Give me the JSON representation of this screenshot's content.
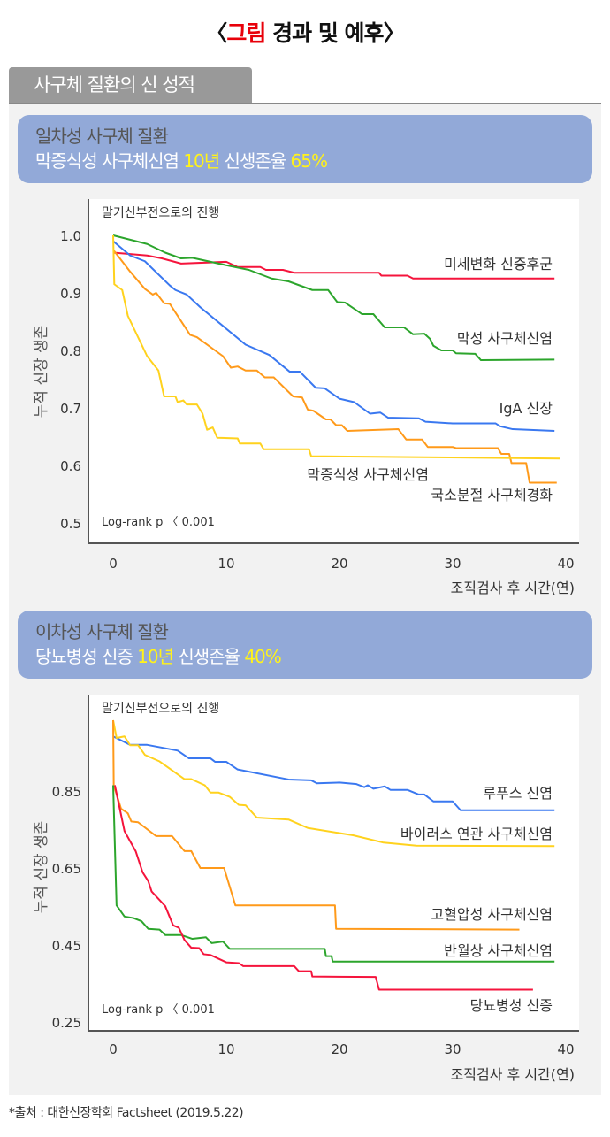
{
  "title": {
    "open": "〈",
    "highlight": "그림",
    "rest": " 경과 및 예후",
    "close": "〉"
  },
  "tab_label": "사구체 질환의 신 성적",
  "box1": {
    "line1": "일차성 사구체 질환",
    "line2_a": "막증식성 사구체신염 ",
    "line2_b": "10년",
    "line2_c": " 신생존율 ",
    "line2_d": "65%"
  },
  "box2": {
    "line1": "이차성 사구체 질환",
    "line2_a": "당뇨병성 신증 ",
    "line2_b": "10년",
    "line2_c": " 신생존율 ",
    "line2_d": "40%"
  },
  "source": "*출처 : 대한신장학회 Factsheet (2019.5.22)",
  "chart_data": [
    {
      "type": "line",
      "title": "말기신부전으로의 진행",
      "xlabel": "조직검사 후 시간(연)",
      "ylabel": "누적 신장 생존",
      "annotation": "Log-rank p 〈 0.001",
      "xlim": [
        0,
        40
      ],
      "ylim": [
        0.5,
        1.0
      ],
      "xticks": [
        "0",
        "10",
        "20",
        "30",
        "40"
      ],
      "yticks": [
        {
          "v": 1.0,
          "label": "1.0"
        },
        {
          "v": 0.9,
          "label": "0.9"
        },
        {
          "v": 0.8,
          "label": "0.8"
        },
        {
          "v": 0.7,
          "label": "0.7"
        },
        {
          "v": 0.6,
          "label": "0.6"
        },
        {
          "v": 0.5,
          "label": "0.5"
        }
      ],
      "series": [
        {
          "name": "미세변화 신증후군",
          "color": "#f5143c",
          "points": [
            [
              0,
              0.97
            ],
            [
              3,
              0.965
            ],
            [
              4.3,
              0.96
            ],
            [
              6,
              0.951
            ],
            [
              10,
              0.954
            ],
            [
              11,
              0.945
            ],
            [
              13,
              0.945
            ],
            [
              13.5,
              0.94
            ],
            [
              15,
              0.94
            ],
            [
              16,
              0.935
            ],
            [
              23.5,
              0.935
            ],
            [
              23.7,
              0.93
            ],
            [
              26,
              0.93
            ],
            [
              26.5,
              0.925
            ],
            [
              39,
              0.925
            ]
          ]
        },
        {
          "name": "막성 사구체신염",
          "color": "#2ca52c",
          "points": [
            [
              0,
              1.0
            ],
            [
              3,
              0.985
            ],
            [
              4.6,
              0.97
            ],
            [
              6,
              0.96
            ],
            [
              7,
              0.961
            ],
            [
              10,
              0.948
            ],
            [
              12,
              0.94
            ],
            [
              14,
              0.925
            ],
            [
              15.5,
              0.92
            ],
            [
              17.6,
              0.905
            ],
            [
              19,
              0.905
            ],
            [
              19.8,
              0.884
            ],
            [
              20.5,
              0.883
            ],
            [
              22,
              0.863
            ],
            [
              23,
              0.863
            ],
            [
              24,
              0.84
            ],
            [
              25.7,
              0.84
            ],
            [
              26.5,
              0.828
            ],
            [
              27.5,
              0.829
            ],
            [
              28,
              0.82
            ],
            [
              28.3,
              0.808
            ],
            [
              29,
              0.8
            ],
            [
              30,
              0.8
            ],
            [
              30.3,
              0.795
            ],
            [
              32,
              0.794
            ],
            [
              32.5,
              0.783
            ],
            [
              39,
              0.784
            ]
          ]
        },
        {
          "name": "IgA 신장",
          "color": "#3a78f0",
          "points": [
            [
              0,
              0.99
            ],
            [
              1.5,
              0.965
            ],
            [
              2.8,
              0.955
            ],
            [
              5,
              0.913
            ],
            [
              5.5,
              0.905
            ],
            [
              6.5,
              0.897
            ],
            [
              7.7,
              0.875
            ],
            [
              11.7,
              0.81
            ],
            [
              13.8,
              0.792
            ],
            [
              15.6,
              0.763
            ],
            [
              16.5,
              0.763
            ],
            [
              17.9,
              0.735
            ],
            [
              18.7,
              0.734
            ],
            [
              20,
              0.716
            ],
            [
              21.3,
              0.71
            ],
            [
              22.7,
              0.69
            ],
            [
              23.6,
              0.692
            ],
            [
              24.3,
              0.683
            ],
            [
              27,
              0.682
            ],
            [
              27.6,
              0.676
            ],
            [
              30,
              0.673
            ],
            [
              33.8,
              0.673
            ],
            [
              34.2,
              0.668
            ],
            [
              35.3,
              0.663
            ],
            [
              39,
              0.66
            ]
          ]
        },
        {
          "name": "국소분절 사구체경화",
          "color": "#ff9a1a",
          "points": [
            [
              0,
              0.975
            ],
            [
              1.5,
              0.937
            ],
            [
              2.8,
              0.907
            ],
            [
              3.5,
              0.897
            ],
            [
              3.8,
              0.9
            ],
            [
              4.5,
              0.882
            ],
            [
              5,
              0.881
            ],
            [
              6.8,
              0.827
            ],
            [
              7.4,
              0.823
            ],
            [
              9.7,
              0.79
            ],
            [
              10.4,
              0.77
            ],
            [
              11,
              0.772
            ],
            [
              11.7,
              0.765
            ],
            [
              12.7,
              0.765
            ],
            [
              13.4,
              0.753
            ],
            [
              14.2,
              0.753
            ],
            [
              15.9,
              0.72
            ],
            [
              16.7,
              0.718
            ],
            [
              17.2,
              0.697
            ],
            [
              17.7,
              0.695
            ],
            [
              18.8,
              0.68
            ],
            [
              19.2,
              0.68
            ],
            [
              19.7,
              0.67
            ],
            [
              20.2,
              0.67
            ],
            [
              20.7,
              0.66
            ],
            [
              25.2,
              0.663
            ],
            [
              25.9,
              0.645
            ],
            [
              27.3,
              0.645
            ],
            [
              27.8,
              0.632
            ],
            [
              30,
              0.632
            ],
            [
              30.3,
              0.63
            ],
            [
              34,
              0.63
            ],
            [
              34.3,
              0.62
            ],
            [
              35,
              0.62
            ],
            [
              35.2,
              0.604
            ],
            [
              36.5,
              0.604
            ],
            [
              36.8,
              0.57
            ],
            [
              39.2,
              0.57
            ]
          ]
        },
        {
          "name": "막증식성 사구체신염",
          "color": "#ffd21e",
          "points": [
            [
              0,
              1.0
            ],
            [
              0.1,
              0.915
            ],
            [
              0.8,
              0.905
            ],
            [
              1.3,
              0.86
            ],
            [
              3,
              0.79
            ],
            [
              4,
              0.765
            ],
            [
              4.5,
              0.72
            ],
            [
              5.5,
              0.72
            ],
            [
              5.7,
              0.71
            ],
            [
              6.2,
              0.713
            ],
            [
              6.5,
              0.706
            ],
            [
              7.4,
              0.706
            ],
            [
              7.9,
              0.69
            ],
            [
              8.3,
              0.662
            ],
            [
              8.8,
              0.666
            ],
            [
              9.2,
              0.648
            ],
            [
              11,
              0.647
            ],
            [
              11.2,
              0.638
            ],
            [
              13,
              0.638
            ],
            [
              13.3,
              0.628
            ],
            [
              17.3,
              0.628
            ],
            [
              17.5,
              0.616
            ],
            [
              39.5,
              0.612
            ]
          ]
        }
      ]
    },
    {
      "type": "line",
      "title": "말기신부전으로의 진행",
      "xlabel": "조직검사 후 시간(연)",
      "ylabel": "누적 신장 생존",
      "annotation": "Log-rank p 〈 0.001",
      "xlim": [
        0,
        40
      ],
      "ylim": [
        0.25,
        1.05
      ],
      "xticks": [
        "0",
        "10",
        "20",
        "30",
        "40"
      ],
      "yticks": [
        {
          "v": 0.85,
          "label": "0.85"
        },
        {
          "v": 0.65,
          "label": "0.65"
        },
        {
          "v": 0.45,
          "label": "0.45"
        },
        {
          "v": 0.25,
          "label": "0.25"
        }
      ],
      "series": [
        {
          "name": "루푸스 신염",
          "color": "#3a78f0",
          "points": [
            [
              0,
              0.992
            ],
            [
              1.5,
              0.97
            ],
            [
              3,
              0.97
            ],
            [
              5.7,
              0.955
            ],
            [
              6.7,
              0.935
            ],
            [
              8.6,
              0.935
            ],
            [
              9,
              0.926
            ],
            [
              10,
              0.926
            ],
            [
              11,
              0.906
            ],
            [
              15.5,
              0.88
            ],
            [
              17.5,
              0.878
            ],
            [
              18,
              0.87
            ],
            [
              20,
              0.872
            ],
            [
              21.5,
              0.868
            ],
            [
              22.2,
              0.86
            ],
            [
              22.5,
              0.865
            ],
            [
              23,
              0.856
            ],
            [
              24,
              0.862
            ],
            [
              24.5,
              0.853
            ],
            [
              26,
              0.853
            ],
            [
              27,
              0.841
            ],
            [
              27.5,
              0.841
            ],
            [
              28.3,
              0.823
            ],
            [
              30,
              0.823
            ],
            [
              30.7,
              0.8
            ],
            [
              39,
              0.8
            ]
          ]
        },
        {
          "name": "바이러스 연관 사구체신염",
          "color": "#ffd21e",
          "points": [
            [
              0,
              1.034
            ],
            [
              0.3,
              0.988
            ],
            [
              1,
              0.992
            ],
            [
              1.5,
              0.969
            ],
            [
              2.2,
              0.969
            ],
            [
              2.8,
              0.944
            ],
            [
              4.1,
              0.927
            ],
            [
              6.3,
              0.881
            ],
            [
              6.9,
              0.881
            ],
            [
              8.1,
              0.865
            ],
            [
              8.6,
              0.846
            ],
            [
              9.3,
              0.846
            ],
            [
              10.3,
              0.835
            ],
            [
              11.1,
              0.814
            ],
            [
              11.7,
              0.813
            ],
            [
              12.7,
              0.781
            ],
            [
              15.5,
              0.776
            ],
            [
              17.2,
              0.754
            ],
            [
              21.2,
              0.735
            ],
            [
              23.9,
              0.716
            ],
            [
              26.8,
              0.708
            ],
            [
              39,
              0.707
            ]
          ]
        },
        {
          "name": "고혈압성 사구체신염",
          "color": "#ff9a1a",
          "points": [
            [
              0,
              1.034
            ],
            [
              0.05,
              0.865
            ],
            [
              0.7,
              0.804
            ],
            [
              1.3,
              0.792
            ],
            [
              1.6,
              0.771
            ],
            [
              2.2,
              0.769
            ],
            [
              3.8,
              0.733
            ],
            [
              5.2,
              0.733
            ],
            [
              6.3,
              0.694
            ],
            [
              6.9,
              0.694
            ],
            [
              7.7,
              0.65
            ],
            [
              9.8,
              0.65
            ],
            [
              10.8,
              0.553
            ],
            [
              19.6,
              0.553
            ],
            [
              19.7,
              0.492
            ],
            [
              35.9,
              0.49
            ]
          ]
        },
        {
          "name": "반월상 사구체신염",
          "color": "#2ca52c",
          "points": [
            [
              0,
              0.865
            ],
            [
              0.3,
              0.553
            ],
            [
              1,
              0.524
            ],
            [
              1.8,
              0.52
            ],
            [
              2.5,
              0.512
            ],
            [
              3.1,
              0.492
            ],
            [
              4.1,
              0.49
            ],
            [
              4.6,
              0.476
            ],
            [
              6,
              0.476
            ],
            [
              7,
              0.466
            ],
            [
              8.2,
              0.47
            ],
            [
              8.7,
              0.455
            ],
            [
              9.7,
              0.459
            ],
            [
              10.3,
              0.44
            ],
            [
              18.7,
              0.44
            ],
            [
              18.8,
              0.421
            ],
            [
              19.3,
              0.421
            ],
            [
              19.4,
              0.407
            ],
            [
              39,
              0.407
            ]
          ]
        },
        {
          "name": "당뇨병성 신증",
          "color": "#f5143c",
          "points": [
            [
              0.15,
              0.865
            ],
            [
              1,
              0.746
            ],
            [
              2,
              0.693
            ],
            [
              2.6,
              0.639
            ],
            [
              3.1,
              0.616
            ],
            [
              3.4,
              0.589
            ],
            [
              4.6,
              0.551
            ],
            [
              5.3,
              0.501
            ],
            [
              5.8,
              0.495
            ],
            [
              6.3,
              0.463
            ],
            [
              6.9,
              0.443
            ],
            [
              7.6,
              0.442
            ],
            [
              8,
              0.426
            ],
            [
              8.6,
              0.424
            ],
            [
              10,
              0.405
            ],
            [
              11.1,
              0.403
            ],
            [
              11.5,
              0.395
            ],
            [
              16,
              0.395
            ],
            [
              16.4,
              0.382
            ],
            [
              17.5,
              0.382
            ],
            [
              17.6,
              0.368
            ],
            [
              23.2,
              0.367
            ],
            [
              23.5,
              0.334
            ],
            [
              37.1,
              0.334
            ]
          ]
        }
      ]
    }
  ]
}
